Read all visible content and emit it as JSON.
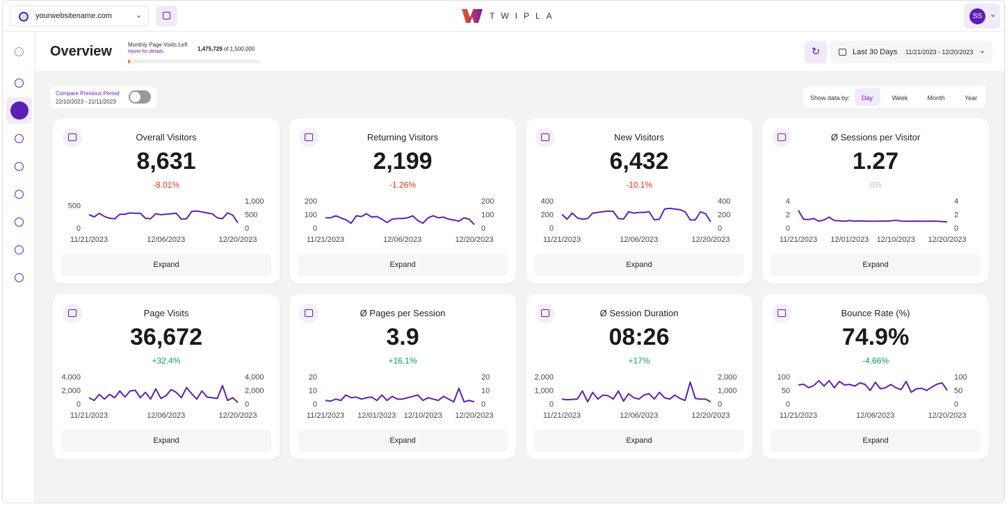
{
  "topbar": {
    "site": "yourwebsitename.com",
    "logo": "TWIPLA",
    "avatar": "SS"
  },
  "header": {
    "title": "Overview",
    "quota_title": "Monthly Page Visits Left",
    "quota_hint": "Hover for details",
    "quota_left": {
      "value": 1475729,
      "label": "1,475,729"
    },
    "quota_total": {
      "value": 1500000,
      "label": "of 1,500,000"
    },
    "period": "Last 30 Days",
    "range": "11/21/2023 - 12/20/2023"
  },
  "compare": {
    "label": "Compare Previous Period",
    "range": "22/10/2023 - 21/11/2023"
  },
  "show_by": {
    "label": "Show data by:",
    "options": [
      "Day",
      "Week",
      "Month",
      "Year"
    ],
    "selected": 0
  },
  "cards": [
    {
      "title": "Overall Visitors",
      "value": "8,631",
      "change": "-8.01%",
      "change_color": "#e0331f",
      "button": "Expand",
      "chart": {
        "type": "line",
        "color": "#5b1fb8",
        "xlim": [
          0,
          29
        ],
        "xticks": [
          {
            "value": 0,
            "label": "11/21/2023"
          },
          {
            "value": 15,
            "label": "12/06/2023"
          },
          {
            "value": 29,
            "label": "12/20/2023"
          }
        ],
        "ylim": [
          0,
          600
        ],
        "yticks": [
          0,
          500
        ],
        "y2lim": [
          0,
          1000
        ],
        "y2ticks": [
          0,
          500,
          {
            "value": 1000,
            "label": "1,000"
          }
        ],
        "values": [
          310,
          260,
          340,
          270,
          230,
          220,
          320,
          320,
          350,
          340,
          340,
          230,
          220,
          330,
          310,
          320,
          330,
          340,
          210,
          220,
          380,
          390,
          370,
          350,
          330,
          240,
          220,
          350,
          300,
          130
        ]
      }
    },
    {
      "title": "Returning Visitors",
      "value": "2,199",
      "change": "-1.26%",
      "change_color": "#e0331f",
      "button": "Expand",
      "chart": {
        "type": "line",
        "color": "#5b1fb8",
        "xlim": [
          0,
          29
        ],
        "xticks": [
          {
            "value": 0,
            "label": "11/21/2023"
          },
          {
            "value": 15,
            "label": "12/06/2023"
          },
          {
            "value": 29,
            "label": "12/20/2023"
          }
        ],
        "ylim": [
          0,
          200
        ],
        "yticks": [
          0,
          100,
          200
        ],
        "y2lim": [
          0,
          200
        ],
        "y2ticks": [
          0,
          100,
          200
        ],
        "values": [
          80,
          80,
          95,
          80,
          65,
          40,
          95,
          90,
          110,
          85,
          90,
          70,
          45,
          70,
          75,
          75,
          80,
          95,
          60,
          40,
          80,
          95,
          80,
          85,
          70,
          65,
          55,
          80,
          70,
          30
        ]
      }
    },
    {
      "title": "New Visitors",
      "value": "6,432",
      "change": "-10.1%",
      "change_color": "#e0331f",
      "button": "Expand",
      "chart": {
        "type": "line",
        "color": "#5b1fb8",
        "xlim": [
          0,
          29
        ],
        "xticks": [
          {
            "value": 0,
            "label": "11/21/2023"
          },
          {
            "value": 15,
            "label": "12/06/2023"
          },
          {
            "value": 29,
            "label": "12/20/2023"
          }
        ],
        "ylim": [
          0,
          400
        ],
        "yticks": [
          0,
          200,
          400
        ],
        "y2lim": [
          0,
          400
        ],
        "y2ticks": [
          0,
          200,
          400
        ],
        "values": [
          210,
          140,
          230,
          160,
          140,
          150,
          230,
          240,
          250,
          260,
          255,
          150,
          140,
          250,
          230,
          240,
          240,
          250,
          130,
          140,
          290,
          300,
          290,
          280,
          250,
          130,
          130,
          250,
          220,
          100
        ]
      }
    },
    {
      "title": "Ø Sessions per Visitor",
      "value": "1.27",
      "change": "0%",
      "change_color": "#bdbdbd",
      "button": "Expand",
      "chart": {
        "type": "line",
        "color": "#5b1fb8",
        "xlim": [
          0,
          29
        ],
        "xticks": [
          {
            "value": 0,
            "label": "11/21/2023"
          },
          {
            "value": 10,
            "label": "12/01/2023"
          },
          {
            "value": 19,
            "label": "12/10/2023"
          },
          {
            "value": 29,
            "label": "12/20/2023"
          }
        ],
        "ylim": [
          0,
          4
        ],
        "yticks": [
          0,
          2,
          4
        ],
        "y2lim": [
          0,
          4
        ],
        "y2ticks": [
          0,
          2,
          4
        ],
        "values": [
          2.7,
          1.4,
          1.35,
          1.5,
          1.1,
          1.3,
          1.7,
          1.2,
          1.15,
          1.1,
          1.2,
          1.1,
          1.15,
          1.12,
          1.1,
          1.1,
          1.12,
          1.12,
          1.15,
          1.25,
          1.12,
          1.1,
          1.1,
          1.12,
          1.1,
          1.1,
          1.12,
          1.1,
          1.05,
          1.0
        ]
      }
    },
    {
      "title": "Page Visits",
      "value": "36,672",
      "change": "+32.4%",
      "change_color": "#0f9d58",
      "button": "Expand",
      "chart": {
        "type": "line",
        "color": "#5b1fb8",
        "xlim": [
          0,
          29
        ],
        "xticks": [
          {
            "value": 0,
            "label": "11/21/2023"
          },
          {
            "value": 15,
            "label": "12/06/2023"
          },
          {
            "value": 29,
            "label": "12/20/2023"
          }
        ],
        "ylim": [
          0,
          4000
        ],
        "yticks": [
          0,
          {
            "value": 2000,
            "label": "2,000"
          },
          {
            "value": 4000,
            "label": "4,000"
          }
        ],
        "y2lim": [
          0,
          4000
        ],
        "y2ticks": [
          0,
          {
            "value": 2000,
            "label": "2,000"
          },
          {
            "value": 4000,
            "label": "4,000"
          }
        ],
        "values": [
          1000,
          600,
          1500,
          800,
          1500,
          1000,
          2000,
          1100,
          2000,
          2100,
          1000,
          1800,
          800,
          2300,
          900,
          1300,
          2200,
          1800,
          1000,
          2500,
          1600,
          800,
          2000,
          1100,
          1000,
          900,
          2800,
          600,
          1000,
          300
        ]
      }
    },
    {
      "title": "Ø Pages per Session",
      "value": "3.9",
      "change": "+16.1%",
      "change_color": "#0f9d58",
      "button": "Expand",
      "chart": {
        "type": "line",
        "color": "#5b1fb8",
        "xlim": [
          0,
          29
        ],
        "xticks": [
          {
            "value": 0,
            "label": "11/21/2023"
          },
          {
            "value": 10,
            "label": "12/01/2023"
          },
          {
            "value": 19,
            "label": "12/10/2023"
          },
          {
            "value": 29,
            "label": "12/20/2023"
          }
        ],
        "ylim": [
          0,
          20
        ],
        "yticks": [
          0,
          10,
          20
        ],
        "y2lim": [
          0,
          20
        ],
        "y2ticks": [
          0,
          10,
          20
        ],
        "values": [
          3,
          2.5,
          4,
          3,
          7,
          5,
          5.5,
          4,
          5,
          5.5,
          3,
          7,
          3,
          6,
          4,
          4,
          5,
          6,
          7,
          3,
          5,
          4,
          3,
          6,
          4,
          2,
          12,
          2,
          3,
          2
        ]
      }
    },
    {
      "title": "Ø Session Duration",
      "value": "08:26",
      "change": "+17%",
      "change_color": "#0f9d58",
      "button": "Expand",
      "chart": {
        "type": "line",
        "color": "#5b1fb8",
        "xlim": [
          0,
          29
        ],
        "xticks": [
          {
            "value": 0,
            "label": "11/21/2023"
          },
          {
            "value": 15,
            "label": "12/06/2023"
          },
          {
            "value": 29,
            "label": "12/20/2023"
          }
        ],
        "ylim": [
          0,
          2000
        ],
        "yticks": [
          0,
          {
            "value": 1000,
            "label": "1,000"
          },
          {
            "value": 2000,
            "label": "2,000"
          }
        ],
        "y2lim": [
          0,
          2000
        ],
        "y2ticks": [
          0,
          {
            "value": 1000,
            "label": "1,000"
          },
          {
            "value": 2000,
            "label": "2,000"
          }
        ],
        "values": [
          400,
          350,
          380,
          400,
          1000,
          200,
          900,
          400,
          700,
          650,
          400,
          1000,
          250,
          800,
          500,
          400,
          700,
          800,
          400,
          900,
          500,
          400,
          700,
          450,
          300,
          1650,
          450,
          400,
          400,
          200
        ]
      }
    },
    {
      "title": "Bounce Rate (%)",
      "value": "74.9%",
      "change": "-4.66%",
      "change_color": "#0f9d58",
      "button": "Expand",
      "chart": {
        "type": "line",
        "color": "#5b1fb8",
        "xlim": [
          0,
          29
        ],
        "xticks": [
          {
            "value": 0,
            "label": "11/21/2023"
          },
          {
            "value": 15,
            "label": "12/06/2023"
          },
          {
            "value": 29,
            "label": "12/20/2023"
          }
        ],
        "ylim": [
          0,
          100
        ],
        "yticks": [
          0,
          50,
          100
        ],
        "y2lim": [
          0,
          100
        ],
        "y2ticks": [
          0,
          50,
          100
        ],
        "values": [
          72,
          75,
          62,
          70,
          88,
          68,
          88,
          62,
          85,
          72,
          74,
          68,
          80,
          74,
          52,
          82,
          58,
          62,
          74,
          62,
          55,
          85,
          45,
          58,
          60,
          52,
          64,
          75,
          80,
          52
        ]
      }
    }
  ]
}
